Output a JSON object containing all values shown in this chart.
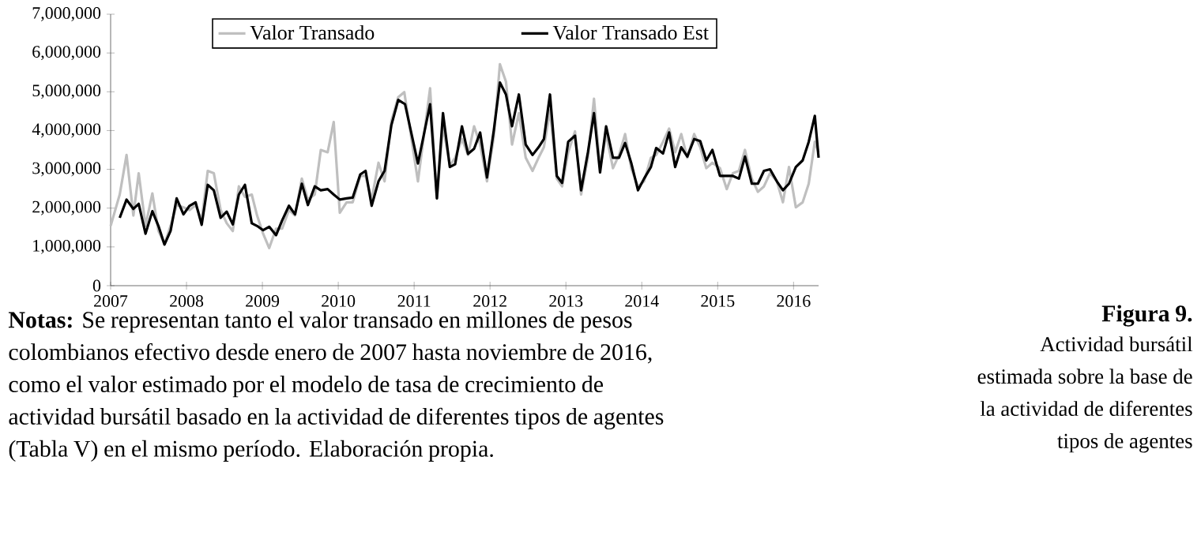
{
  "chart_data": {
    "type": "line",
    "title": "Figura 9.",
    "subtitle": "Actividad bursátil estimada sobre la base de la actividad de diferentes tipos de agentes",
    "annotations": [
      "**Notas:** Se representan tanto el valor transado en millones de pesos colombianos efectivo desde enero de 2007 hasta noviembre de 2016, como el valor estimado por el modelo de tasa de crecimiento de actividad bursátil basado en la actividad de diferentes tipos de agentes (Tabla V) en el mismo período. Elaboración propia."
    ],
    "xlim": [
      2007,
      2016.33
    ],
    "xticks": [
      2007,
      2008,
      2009,
      2010,
      2011,
      2012,
      2013,
      2014,
      2015,
      2016
    ],
    "ylim": [
      0,
      7000000
    ],
    "yticks": [
      0,
      {
        "value": 1000000,
        "label": "1,000,000"
      },
      {
        "value": 2000000,
        "label": "2,000,000"
      },
      {
        "value": 3000000,
        "label": "3,000,000"
      },
      {
        "value": 4000000,
        "label": "4,000,000"
      },
      {
        "value": 5000000,
        "label": "5,000,000"
      },
      {
        "value": 6000000,
        "label": "6,000,000"
      },
      {
        "value": 7000000,
        "label": "7,000,000"
      }
    ],
    "legend": "top",
    "marker": "none",
    "line_style": "solid",
    "series": [
      {
        "name": "Valor Transado",
        "color": "#bfbfbf",
        "x": [
          2007.0,
          2007.12,
          2007.21,
          2007.3,
          2007.37,
          2007.46,
          2007.55,
          2007.63,
          2007.71,
          2007.79,
          2007.87,
          2007.96,
          2008.04,
          2008.12,
          2008.2,
          2008.28,
          2008.36,
          2008.45,
          2008.53,
          2008.61,
          2008.69,
          2008.77,
          2008.86,
          2008.93,
          2009.01,
          2009.09,
          2009.18,
          2009.26,
          2009.35,
          2009.43,
          2009.52,
          2009.6,
          2009.69,
          2009.77,
          2009.86,
          2009.94,
          2010.02,
          2010.11,
          2010.19,
          2010.29,
          2010.36,
          2010.44,
          2010.53,
          2010.61,
          2010.7,
          2010.79,
          2010.87,
          2010.96,
          2011.05,
          2011.21,
          2011.3,
          2011.38,
          2011.47,
          2011.54,
          2011.63,
          2011.71,
          2011.79,
          2011.87,
          2011.96,
          2012.05,
          2012.13,
          2012.21,
          2012.29,
          2012.38,
          2012.47,
          2012.56,
          2012.64,
          2012.71,
          2012.79,
          2012.88,
          2012.95,
          2013.03,
          2013.12,
          2013.2,
          2013.29,
          2013.37,
          2013.45,
          2013.53,
          2013.62,
          2013.7,
          2013.78,
          2013.86,
          2013.95,
          2014.03,
          2014.12,
          2014.19,
          2014.28,
          2014.36,
          2014.44,
          2014.52,
          2014.6,
          2014.69,
          2014.77,
          2014.85,
          2014.93,
          2015.03,
          2015.12,
          2015.2,
          2015.28,
          2015.36,
          2015.45,
          2015.53,
          2015.61,
          2015.69,
          2015.78,
          2015.86,
          2015.94,
          2016.03,
          2016.12,
          2016.2,
          2016.28,
          2016.33
        ],
        "values": [
          1540000,
          2350000,
          3370000,
          1810000,
          2900000,
          1540000,
          2380000,
          1410000,
          1070000,
          1540000,
          2080000,
          2020000,
          1950000,
          2080000,
          1680000,
          2960000,
          2900000,
          1950000,
          1610000,
          1410000,
          2560000,
          2290000,
          2350000,
          1810000,
          1340000,
          970000,
          1470000,
          1470000,
          1950000,
          1810000,
          2760000,
          2220000,
          2350000,
          3500000,
          3440000,
          4220000,
          1880000,
          2150000,
          2150000,
          2830000,
          2830000,
          2220000,
          3170000,
          2690000,
          4250000,
          4860000,
          4990000,
          3840000,
          2690000,
          5090000,
          2250000,
          4110000,
          3100000,
          3300000,
          3780000,
          3370000,
          4110000,
          3640000,
          2690000,
          3840000,
          5710000,
          5260000,
          3640000,
          4450000,
          3300000,
          2960000,
          3300000,
          3570000,
          4520000,
          2760000,
          2560000,
          3440000,
          3980000,
          2350000,
          3300000,
          4820000,
          3030000,
          3910000,
          3030000,
          3370000,
          3910000,
          3030000,
          2560000,
          2690000,
          3300000,
          3370000,
          3710000,
          4050000,
          3440000,
          3910000,
          3300000,
          3910000,
          3570000,
          3030000,
          3170000,
          3030000,
          2490000,
          2900000,
          2960000,
          3500000,
          2760000,
          2420000,
          2560000,
          2900000,
          2690000,
          2150000,
          3060000,
          2020000,
          2150000,
          2630000,
          3710000,
          3440000
        ]
      },
      {
        "name": "Valor Transado Est",
        "color": "#000000",
        "x": [
          2007.12,
          2007.21,
          2007.3,
          2007.37,
          2007.46,
          2007.55,
          2007.63,
          2007.71,
          2007.79,
          2007.87,
          2007.96,
          2008.04,
          2008.12,
          2008.2,
          2008.28,
          2008.36,
          2008.45,
          2008.53,
          2008.61,
          2008.69,
          2008.77,
          2008.86,
          2008.93,
          2009.01,
          2009.09,
          2009.18,
          2009.26,
          2009.35,
          2009.43,
          2009.52,
          2009.6,
          2009.69,
          2009.77,
          2009.86,
          2009.94,
          2010.02,
          2010.11,
          2010.19,
          2010.29,
          2010.36,
          2010.44,
          2010.53,
          2010.61,
          2010.7,
          2010.79,
          2010.88,
          2011.05,
          2011.21,
          2011.3,
          2011.38,
          2011.47,
          2011.54,
          2011.63,
          2011.71,
          2011.79,
          2011.87,
          2011.96,
          2012.05,
          2012.13,
          2012.21,
          2012.29,
          2012.38,
          2012.47,
          2012.56,
          2012.64,
          2012.71,
          2012.79,
          2012.88,
          2012.95,
          2013.03,
          2013.12,
          2013.2,
          2013.29,
          2013.37,
          2013.45,
          2013.53,
          2013.62,
          2013.7,
          2013.78,
          2013.86,
          2013.95,
          2014.03,
          2014.12,
          2014.19,
          2014.28,
          2014.36,
          2014.44,
          2014.52,
          2014.6,
          2014.69,
          2014.77,
          2014.85,
          2014.93,
          2015.03,
          2015.12,
          2015.2,
          2015.28,
          2015.36,
          2015.45,
          2015.53,
          2015.61,
          2015.69,
          2015.78,
          2015.86,
          2015.94,
          2016.03,
          2016.12,
          2016.2,
          2016.28,
          2016.33
        ],
        "values": [
          1750000,
          2220000,
          1980000,
          2110000,
          1340000,
          1920000,
          1540000,
          1060000,
          1410000,
          2250000,
          1840000,
          2060000,
          2150000,
          1570000,
          2600000,
          2460000,
          1750000,
          1910000,
          1580000,
          2350000,
          2600000,
          1610000,
          1540000,
          1430000,
          1520000,
          1300000,
          1680000,
          2060000,
          1840000,
          2630000,
          2080000,
          2560000,
          2460000,
          2490000,
          2350000,
          2220000,
          2250000,
          2270000,
          2870000,
          2960000,
          2060000,
          2690000,
          2960000,
          4140000,
          4790000,
          4680000,
          3150000,
          4680000,
          2250000,
          4450000,
          3060000,
          3130000,
          4110000,
          3400000,
          3530000,
          3950000,
          2790000,
          4010000,
          5240000,
          4930000,
          4110000,
          4930000,
          3640000,
          3370000,
          3570000,
          3780000,
          4930000,
          2830000,
          2650000,
          3710000,
          3870000,
          2460000,
          3440000,
          4450000,
          2920000,
          4110000,
          3300000,
          3300000,
          3680000,
          3170000,
          2460000,
          2760000,
          3060000,
          3550000,
          3410000,
          3950000,
          3060000,
          3570000,
          3330000,
          3780000,
          3730000,
          3230000,
          3500000,
          2830000,
          2830000,
          2830000,
          2760000,
          3330000,
          2630000,
          2630000,
          2960000,
          3000000,
          2690000,
          2460000,
          2630000,
          3060000,
          3230000,
          3710000,
          4380000,
          3300000
        ]
      }
    ]
  }
}
